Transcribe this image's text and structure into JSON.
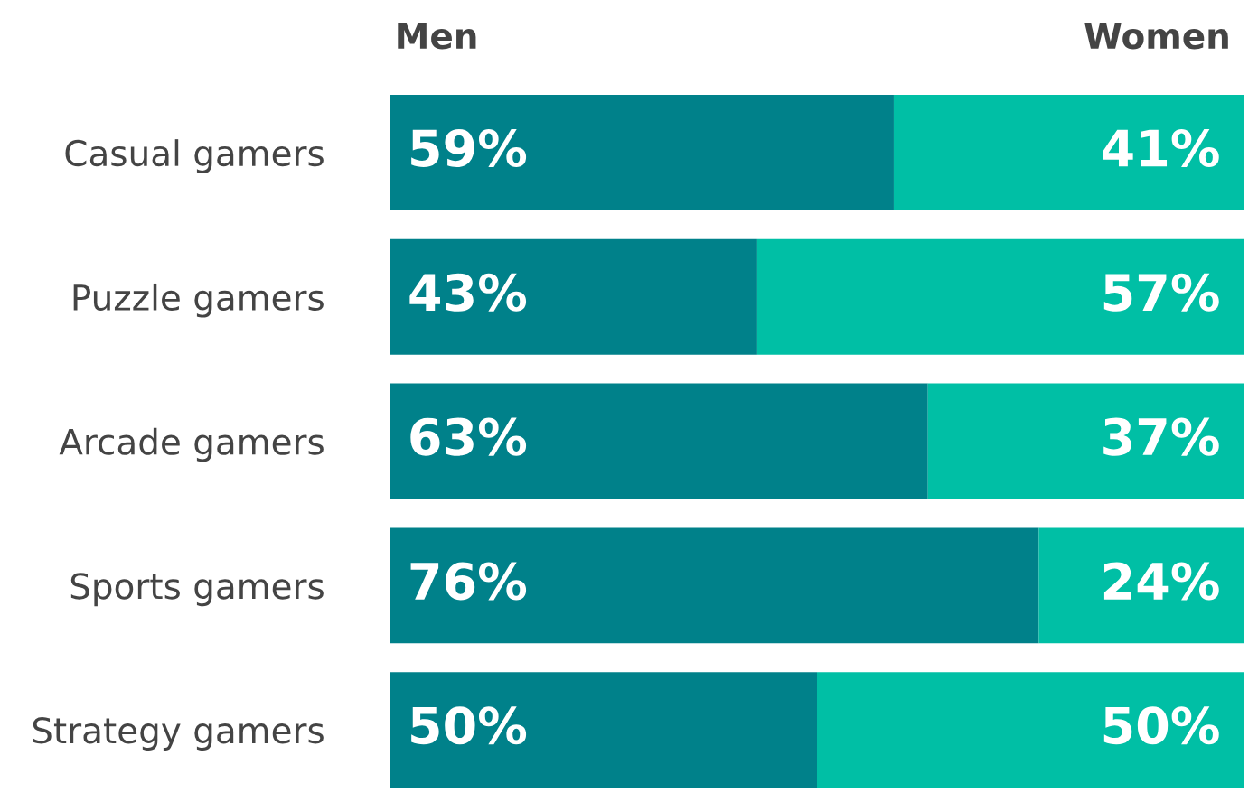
{
  "chart_data": {
    "type": "bar",
    "orientation": "horizontal",
    "stacked": true,
    "categories": [
      "Casual gamers",
      "Puzzle gamers",
      "Arcade gamers",
      "Sports gamers",
      "Strategy gamers"
    ],
    "series": [
      {
        "name": "Men",
        "color": "#00818a",
        "values": [
          59,
          43,
          63,
          76,
          50
        ],
        "value_labels": [
          "59%",
          "43%",
          "63%",
          "76%",
          "50%"
        ]
      },
      {
        "name": "Women",
        "color": "#00bfa5",
        "values": [
          41,
          57,
          37,
          24,
          50
        ],
        "value_labels": [
          "41%",
          "57%",
          "37%",
          "24%",
          "50%"
        ]
      }
    ],
    "xlim": [
      0,
      100
    ],
    "tick_labels": "y",
    "grid": false,
    "legend": "top"
  }
}
